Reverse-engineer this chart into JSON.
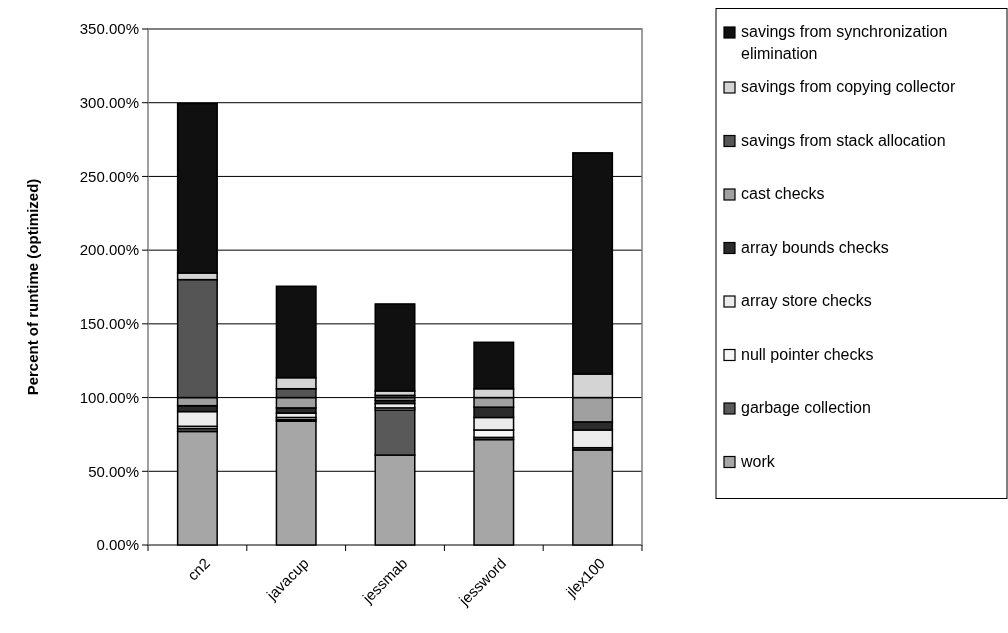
{
  "chart_data": {
    "type": "bar",
    "stacked": true,
    "ylabel": "Percent of runtime (optimized)",
    "categories": [
      "cn2",
      "javacup",
      "jessmab",
      "jessword",
      "jlex100"
    ],
    "series": [
      {
        "name": "work",
        "color": "#a6a6a6",
        "values": [
          77,
          84,
          61,
          71.5,
          64.5
        ]
      },
      {
        "name": "garbage collection",
        "color": "#595959",
        "values": [
          2,
          1,
          30.5,
          1.5,
          1.5
        ]
      },
      {
        "name": "null pointer checks",
        "color": "#f7f7f7",
        "values": [
          1.5,
          1.5,
          1.5,
          5,
          null
        ]
      },
      {
        "name": "array store checks",
        "color": "#ececec",
        "values": [
          10,
          3,
          3,
          8.5,
          12
        ]
      },
      {
        "name": "array bounds checks",
        "color": "#2b2b2b",
        "values": [
          4,
          3.5,
          2,
          7,
          5.5
        ]
      },
      {
        "name": "cast checks",
        "color": "#a0a0a0",
        "values": [
          5.5,
          7,
          2,
          6.5,
          16.5
        ]
      },
      {
        "name": "savings from stack allocation",
        "color": "#555555",
        "values": [
          80,
          6,
          1.5,
          null,
          null
        ]
      },
      {
        "name": "savings from copying collector",
        "color": "#d4d4d4",
        "values": [
          4.5,
          7.5,
          3,
          6,
          16
        ]
      },
      {
        "name": "savings from synchronization elimination",
        "color": "#101010",
        "values": [
          115,
          62,
          59,
          31.5,
          150
        ]
      }
    ],
    "ylim": [
      0,
      350
    ],
    "yticks": [
      {
        "value": 0,
        "label": "0.00%"
      },
      {
        "value": 50,
        "label": "50.00%"
      },
      {
        "value": 100,
        "label": "100.00%"
      },
      {
        "value": 150,
        "label": "150.00%"
      },
      {
        "value": 200,
        "label": "200.00%"
      },
      {
        "value": 250,
        "label": "250.00%"
      },
      {
        "value": 300,
        "label": "300.00%"
      },
      {
        "value": 350,
        "label": "350.00%"
      }
    ],
    "grid": "y",
    "legend": "right"
  }
}
